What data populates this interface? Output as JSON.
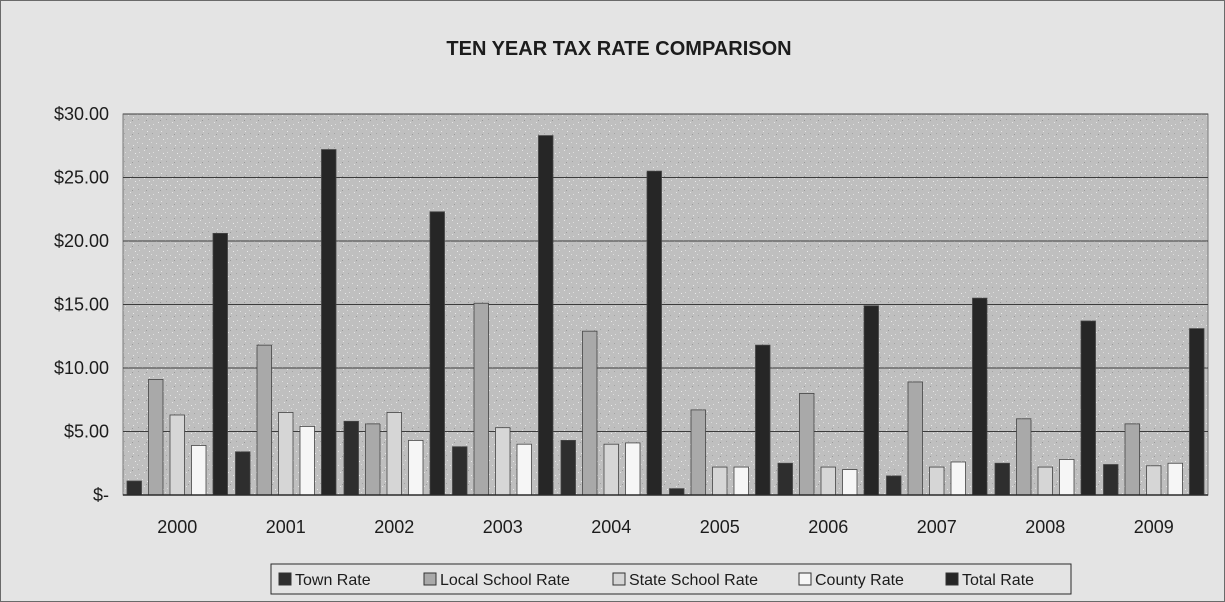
{
  "chart_data": {
    "type": "bar",
    "title": "TEN YEAR TAX RATE COMPARISON",
    "xlabel": "",
    "ylabel": "",
    "categories": [
      "2000",
      "2001",
      "2002",
      "2003",
      "2004",
      "2005",
      "2006",
      "2007",
      "2008",
      "2009"
    ],
    "y_ticks": [
      0,
      5,
      10,
      15,
      20,
      25,
      30
    ],
    "y_tick_labels": [
      "$-",
      "$5.00",
      "$10.00",
      "$15.00",
      "$20.00",
      "$25.00",
      "$30.00"
    ],
    "ylim": [
      0,
      30
    ],
    "grid": true,
    "legend_position": "bottom",
    "series": [
      {
        "name": "Town Rate",
        "color": "#2e2e2e",
        "values": [
          1.1,
          3.4,
          5.8,
          3.8,
          4.3,
          0.5,
          2.5,
          1.5,
          2.5,
          2.4
        ]
      },
      {
        "name": "Local School Rate",
        "color": "#a9a9a9",
        "values": [
          9.1,
          11.8,
          5.6,
          15.1,
          12.9,
          6.7,
          8.0,
          8.9,
          6.0,
          5.6
        ]
      },
      {
        "name": "State School Rate",
        "color": "#d6d6d6",
        "values": [
          6.3,
          6.5,
          6.5,
          5.3,
          4.0,
          2.2,
          2.2,
          2.2,
          2.2,
          2.3
        ]
      },
      {
        "name": "County Rate",
        "color": "#f6f6f6",
        "values": [
          3.9,
          5.4,
          4.3,
          4.0,
          4.1,
          2.2,
          2.0,
          2.6,
          2.8,
          2.5
        ]
      },
      {
        "name": "Total Rate",
        "color": "#262626",
        "values": [
          20.6,
          27.2,
          22.3,
          28.3,
          25.5,
          11.8,
          14.9,
          15.5,
          13.7,
          13.1
        ]
      }
    ]
  }
}
